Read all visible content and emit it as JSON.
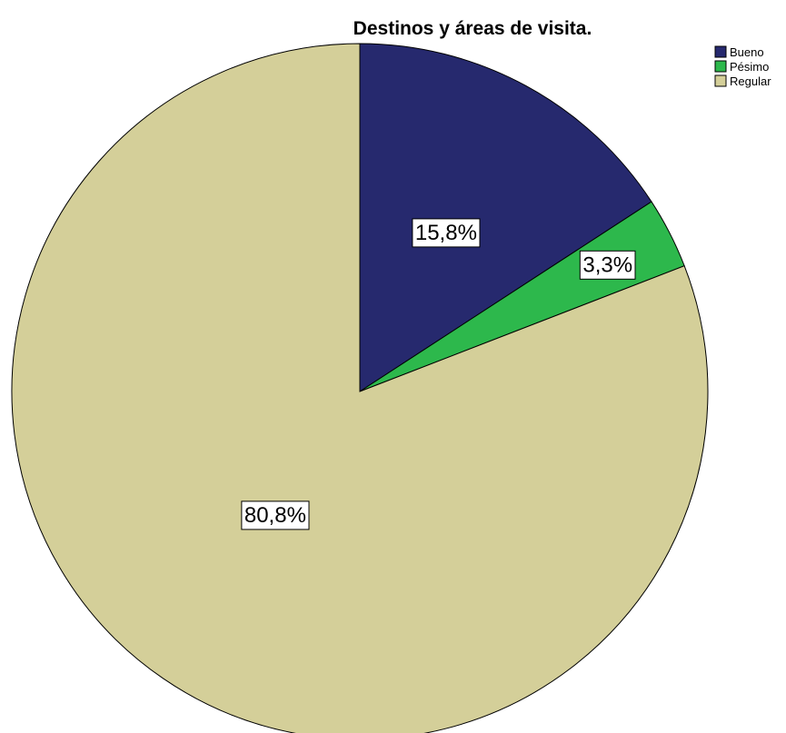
{
  "chart_data": {
    "type": "pie",
    "title": "Destinos y áreas de visita.",
    "categories": [
      "Bueno",
      "Pésimo",
      "Regular"
    ],
    "values": [
      15.8,
      3.3,
      80.8
    ],
    "data_labels": [
      "15,8%",
      "3,3%",
      "80,8%"
    ],
    "colors": [
      "#26296e",
      "#2db84c",
      "#d4cf99"
    ],
    "start_angle_deg": 0,
    "direction": "clockwise",
    "legend": {
      "position": "top-right",
      "entries": [
        "Bueno",
        "Pésimo",
        "Regular"
      ]
    }
  }
}
